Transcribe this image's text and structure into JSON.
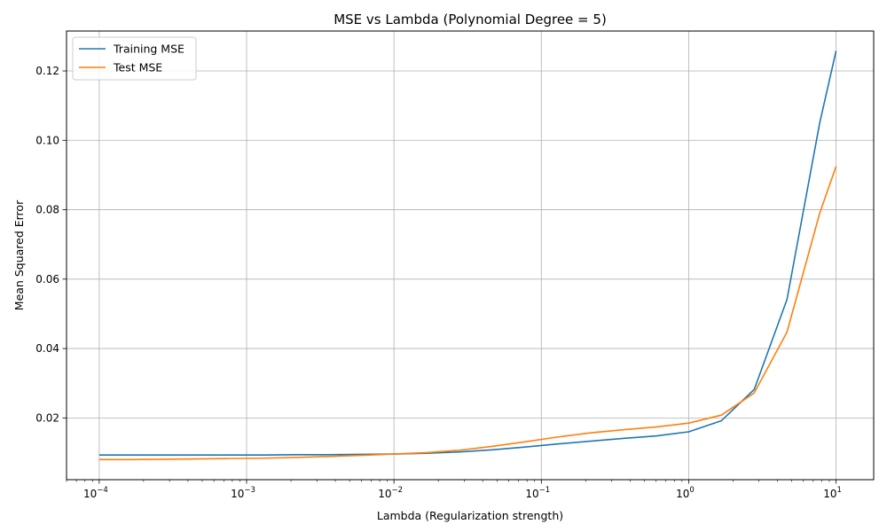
{
  "chart_data": {
    "type": "line",
    "title": "MSE vs Lambda (Polynomial Degree = 5)",
    "xlabel": "Lambda (Regularization strength)",
    "ylabel": "Mean Squared Error",
    "xscale": "log",
    "xlim": [
      6e-05,
      18
    ],
    "ylim": [
      0.0022,
      0.1315
    ],
    "xticks": [
      {
        "value": 0.0001,
        "base": "10",
        "exp": "−4"
      },
      {
        "value": 0.001,
        "base": "10",
        "exp": "−3"
      },
      {
        "value": 0.01,
        "base": "10",
        "exp": "−2"
      },
      {
        "value": 0.1,
        "base": "10",
        "exp": "−1"
      },
      {
        "value": 1,
        "base": "10",
        "exp": "0"
      },
      {
        "value": 10,
        "base": "10",
        "exp": "1"
      }
    ],
    "yticks": [
      {
        "value": 0.02,
        "label": "0.02"
      },
      {
        "value": 0.04,
        "label": "0.04"
      },
      {
        "value": 0.06,
        "label": "0.06"
      },
      {
        "value": 0.08,
        "label": "0.08"
      },
      {
        "value": 0.1,
        "label": "0.10"
      },
      {
        "value": 0.12,
        "label": "0.12"
      }
    ],
    "grid": true,
    "legend": "top-left",
    "x": [
      0.0001,
      0.000167,
      0.000278,
      0.000464,
      0.000774,
      0.001292,
      0.002154,
      0.003594,
      0.005995,
      0.01,
      0.01668,
      0.02783,
      0.04642,
      0.07743,
      0.1292,
      0.2154,
      0.3594,
      0.5995,
      1.0,
      1.668,
      2.783,
      4.642,
      7.743,
      10.0
    ],
    "series": [
      {
        "name": "Training MSE",
        "color": "#1f77b4",
        "values": [
          0.0093,
          0.0093,
          0.0093,
          0.0093,
          0.0093,
          0.0093,
          0.0094,
          0.0094,
          0.0095,
          0.0096,
          0.0098,
          0.0102,
          0.0108,
          0.0116,
          0.0125,
          0.0133,
          0.0141,
          0.0148,
          0.016,
          0.0192,
          0.0282,
          0.0541,
          0.105,
          0.1258
        ]
      },
      {
        "name": "Test MSE",
        "color": "#ff7f0e",
        "values": [
          0.008,
          0.008,
          0.0081,
          0.0082,
          0.0083,
          0.0084,
          0.0086,
          0.0089,
          0.0092,
          0.0096,
          0.01,
          0.0107,
          0.0118,
          0.0131,
          0.0145,
          0.0157,
          0.0166,
          0.0174,
          0.0185,
          0.0208,
          0.0272,
          0.0447,
          0.079,
          0.0925
        ]
      }
    ]
  }
}
